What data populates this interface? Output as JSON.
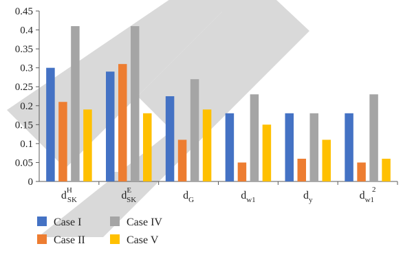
{
  "chart_data": {
    "type": "bar",
    "categories": [
      {
        "base": "d",
        "sub": "SK",
        "sup": "H"
      },
      {
        "base": "d",
        "sub": "SK",
        "sup": "E"
      },
      {
        "base": "d",
        "sub": "G",
        "sup": ""
      },
      {
        "base": "d",
        "sub": "w1",
        "sup": ""
      },
      {
        "base": "d",
        "sub": "y",
        "sup": ""
      },
      {
        "base": "d",
        "sub": "w1",
        "sup": "2"
      }
    ],
    "series": [
      {
        "name": "Case I",
        "color": "#4472C4",
        "values": [
          0.3,
          0.29,
          0.225,
          0.18,
          0.18,
          0.18
        ]
      },
      {
        "name": "Case II",
        "color": "#ED7D31",
        "values": [
          0.21,
          0.31,
          0.11,
          0.05,
          0.06,
          0.05
        ]
      },
      {
        "name": "Case IV",
        "color": "#A5A5A5",
        "values": [
          0.41,
          0.41,
          0.27,
          0.23,
          0.18,
          0.23
        ]
      },
      {
        "name": "Case V",
        "color": "#FFC000",
        "values": [
          0.19,
          0.18,
          0.19,
          0.15,
          0.11,
          0.06
        ]
      }
    ],
    "ylim": [
      0,
      0.45
    ],
    "yticks": [
      "0",
      "0.05",
      "0.1",
      "0.15",
      "0.2",
      "0.25",
      "0.3",
      "0.35",
      "0.4",
      "0.45"
    ],
    "legend_position": "bottom-left",
    "grid": false
  },
  "watermark": {
    "color": "#d9d9d9"
  }
}
